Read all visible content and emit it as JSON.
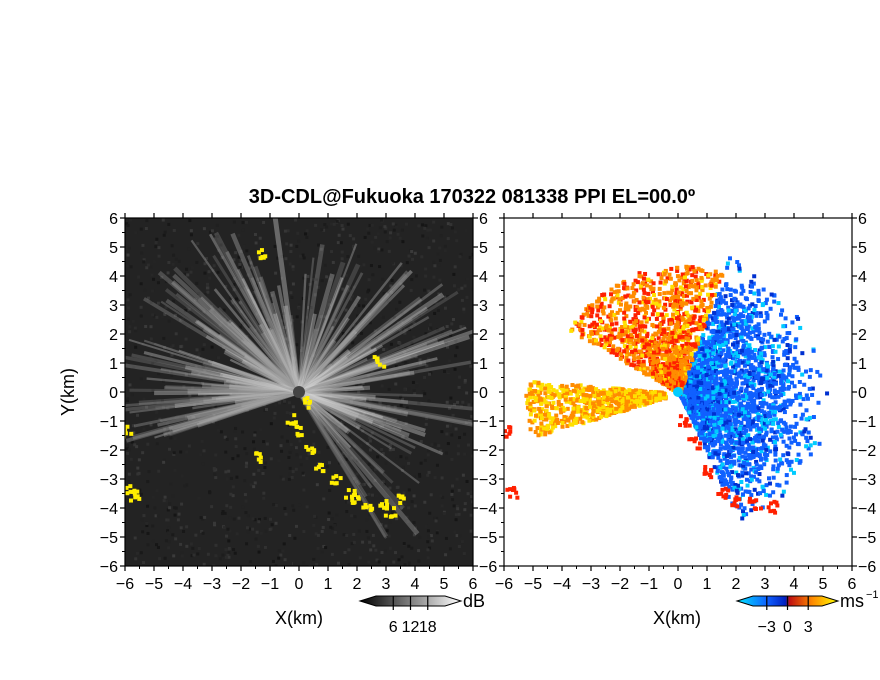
{
  "chart_data": [
    {
      "type": "heatmap",
      "panel": "reflectivity",
      "title": "3D-CDL@Fukuoka 170322 081338 PPI EL=00.0º",
      "xlabel": "X(km)",
      "ylabel": "Y(km)",
      "xlim": [
        -6,
        6
      ],
      "ylim": [
        -6,
        6
      ],
      "xticks": [
        -6,
        -5,
        -4,
        -3,
        -2,
        -1,
        0,
        1,
        2,
        3,
        4,
        5,
        6
      ],
      "yticks": [
        -6,
        -5,
        -4,
        -3,
        -2,
        -1,
        0,
        1,
        2,
        3,
        4,
        5,
        6
      ],
      "colorbar": {
        "unit": "dB",
        "ticks": [
          6,
          12,
          18
        ],
        "range": [
          0,
          24
        ]
      },
      "colors": {
        "background": "#222222",
        "echo": "#e8e8e8",
        "highlight": "#ffee00"
      }
    },
    {
      "type": "heatmap",
      "panel": "doppler-velocity",
      "xlabel": "X(km)",
      "xlim": [
        -6,
        6
      ],
      "ylim": [
        -6,
        6
      ],
      "xticks": [
        -6,
        -5,
        -4,
        -3,
        -2,
        -1,
        0,
        1,
        2,
        3,
        4,
        5,
        6
      ],
      "yticks": [
        -6,
        -5,
        -4,
        -3,
        -2,
        -1,
        0,
        1,
        2,
        3,
        4,
        5,
        6
      ],
      "colorbar": {
        "unit": "ms⁻¹",
        "ticks": [
          -3,
          0,
          3
        ],
        "range": [
          -5,
          5
        ]
      },
      "colors": {
        "toward": "#1060ff",
        "away": "#ff8c00",
        "strong_away": "#ff2000",
        "near_zero": "#ffe000",
        "center": "#00ccff"
      }
    }
  ],
  "labels": {
    "title": "3D-CDL@Fukuoka 170322 081338 PPI EL=00.0º",
    "left_xlabel": "X(km)",
    "right_xlabel": "X(km)",
    "ylabel": "Y(km)",
    "cb1_unit": "dB",
    "cb2_unit": "ms",
    "cb2_sup": "−1"
  }
}
